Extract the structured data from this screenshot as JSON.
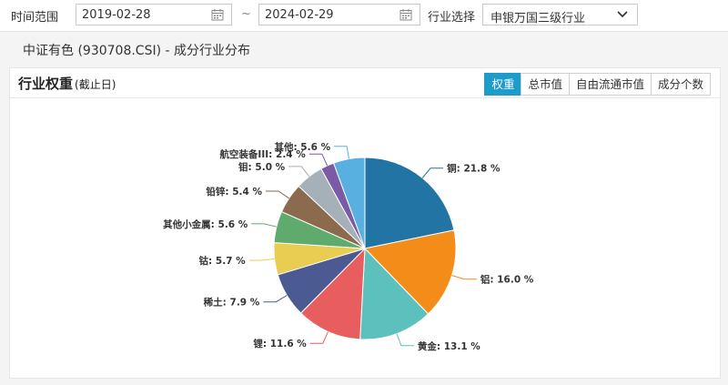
{
  "filters": {
    "range_label": "时间范围",
    "start_date": "2019-02-28",
    "separator": "~",
    "end_date": "2024-02-29",
    "industry_label": "行业选择",
    "industry_value": "申银万国三级行业"
  },
  "subtitle": "中证有色 (930708.CSI) - 成分行业分布",
  "panel": {
    "title": "行业权重",
    "title_sub": "(截止日)",
    "tabs": [
      {
        "label": "权重",
        "active": true
      },
      {
        "label": "总市值",
        "active": false
      },
      {
        "label": "自由流通市值",
        "active": false
      },
      {
        "label": "成分个数",
        "active": false
      }
    ]
  },
  "colors": {
    "accent": "#1d9bc9"
  },
  "icons": [
    "calendar-icon",
    "chevron-down-icon"
  ],
  "chart_data": {
    "type": "pie",
    "unit": "%",
    "slices": [
      {
        "name": "铜",
        "value": 21.8,
        "label": "铜: 21.8 %",
        "color": "#2274a5"
      },
      {
        "name": "铝",
        "value": 16.0,
        "label": "铝: 16.0 %",
        "color": "#f48c1a"
      },
      {
        "name": "黄金",
        "value": 13.1,
        "label": "黄金: 13.1 %",
        "color": "#5cc1bc"
      },
      {
        "name": "锂",
        "value": 11.6,
        "label": "锂: 11.6 %",
        "color": "#e85e5e"
      },
      {
        "name": "稀土",
        "value": 7.9,
        "label": "稀土: 7.9 %",
        "color": "#4b5a93"
      },
      {
        "name": "钴",
        "value": 5.7,
        "label": "钴: 5.7 %",
        "color": "#e8cd50"
      },
      {
        "name": "其他小金属",
        "value": 5.6,
        "label": "其他小金属: 5.6 %",
        "color": "#5fab6d"
      },
      {
        "name": "铅锌",
        "value": 5.4,
        "label": "铅锌: 5.4 %",
        "color": "#8b6a4e"
      },
      {
        "name": "钼",
        "value": 5.0,
        "label": "钼: 5.0 %",
        "color": "#a5b0b8"
      },
      {
        "name": "航空装备III",
        "value": 2.4,
        "label": "航空装备III: 2.4 %",
        "color": "#7b5aa6"
      },
      {
        "name": "其他",
        "value": 5.6,
        "label": "其他: 5.6 %",
        "color": "#57b0e0"
      }
    ]
  }
}
